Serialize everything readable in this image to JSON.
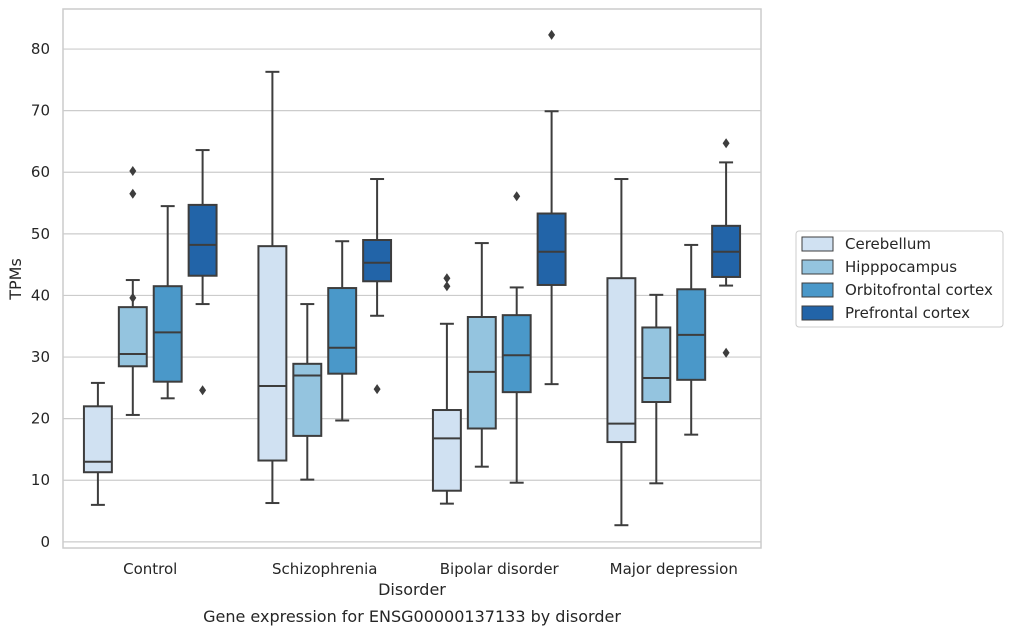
{
  "chart_data": {
    "type": "box",
    "caption": "Gene expression for ENSG00000137133 by disorder",
    "xlabel": "Disorder",
    "ylabel": "TPMs",
    "ylim": [
      -1,
      86.5
    ],
    "yticks": [
      0,
      10,
      20,
      30,
      40,
      50,
      60,
      70,
      80
    ],
    "grid": "horizontal",
    "legend_position": "right",
    "categories": [
      "Control",
      "Schizophrenia",
      "Bipolar disorder",
      "Major depression"
    ],
    "series": [
      {
        "name": "Cerebellum",
        "color": "#d0e1f2",
        "boxes": [
          {
            "whisker_low": 6,
            "q1": 11.3,
            "median": 13,
            "q3": 22,
            "whisker_high": 25.8,
            "outliers": []
          },
          {
            "whisker_low": 6.3,
            "q1": 13.2,
            "median": 25.3,
            "q3": 48,
            "whisker_high": 76.3,
            "outliers": []
          },
          {
            "whisker_low": 6.2,
            "q1": 8.3,
            "median": 16.8,
            "q3": 21.4,
            "whisker_high": 35.4,
            "outliers": [
              41.5,
              42.8
            ]
          },
          {
            "whisker_low": 2.7,
            "q1": 16.2,
            "median": 19.2,
            "q3": 42.8,
            "whisker_high": 58.9,
            "outliers": []
          }
        ]
      },
      {
        "name": "Hipppocampus",
        "color": "#94c4df",
        "boxes": [
          {
            "whisker_low": 20.6,
            "q1": 28.5,
            "median": 30.5,
            "q3": 38.1,
            "whisker_high": 42.5,
            "outliers": [
              39.6,
              56.5,
              60.2
            ]
          },
          {
            "whisker_low": 10.1,
            "q1": 17.2,
            "median": 27,
            "q3": 28.9,
            "whisker_high": 38.6,
            "outliers": []
          },
          {
            "whisker_low": 12.2,
            "q1": 18.4,
            "median": 27.6,
            "q3": 36.5,
            "whisker_high": 48.5,
            "outliers": []
          },
          {
            "whisker_low": 9.5,
            "q1": 22.7,
            "median": 26.6,
            "q3": 34.8,
            "whisker_high": 40.1,
            "outliers": []
          }
        ]
      },
      {
        "name": "Orbitofrontal cortex",
        "color": "#4a98c9",
        "boxes": [
          {
            "whisker_low": 23.3,
            "q1": 26,
            "median": 34,
            "q3": 41.5,
            "whisker_high": 54.5,
            "outliers": []
          },
          {
            "whisker_low": 19.7,
            "q1": 27.3,
            "median": 31.5,
            "q3": 41.2,
            "whisker_high": 48.8,
            "outliers": []
          },
          {
            "whisker_low": 9.6,
            "q1": 24.3,
            "median": 30.3,
            "q3": 36.8,
            "whisker_high": 41.3,
            "outliers": [
              56.1
            ]
          },
          {
            "whisker_low": 17.4,
            "q1": 26.3,
            "median": 33.6,
            "q3": 41,
            "whisker_high": 48.2,
            "outliers": []
          }
        ]
      },
      {
        "name": "Prefrontal cortex",
        "color": "#2264a8",
        "boxes": [
          {
            "whisker_low": 38.6,
            "q1": 43.2,
            "median": 48.2,
            "q3": 54.7,
            "whisker_high": 63.6,
            "outliers": [
              24.6
            ]
          },
          {
            "whisker_low": 36.7,
            "q1": 42.3,
            "median": 45.3,
            "q3": 49,
            "whisker_high": 58.9,
            "outliers": [
              24.8
            ]
          },
          {
            "whisker_low": 25.6,
            "q1": 41.7,
            "median": 47.1,
            "q3": 53.3,
            "whisker_high": 69.9,
            "outliers": [
              82.3
            ]
          },
          {
            "whisker_low": 41.6,
            "q1": 43,
            "median": 47.1,
            "q3": 51.3,
            "whisker_high": 61.6,
            "outliers": [
              30.7,
              64.7
            ]
          }
        ]
      }
    ]
  }
}
